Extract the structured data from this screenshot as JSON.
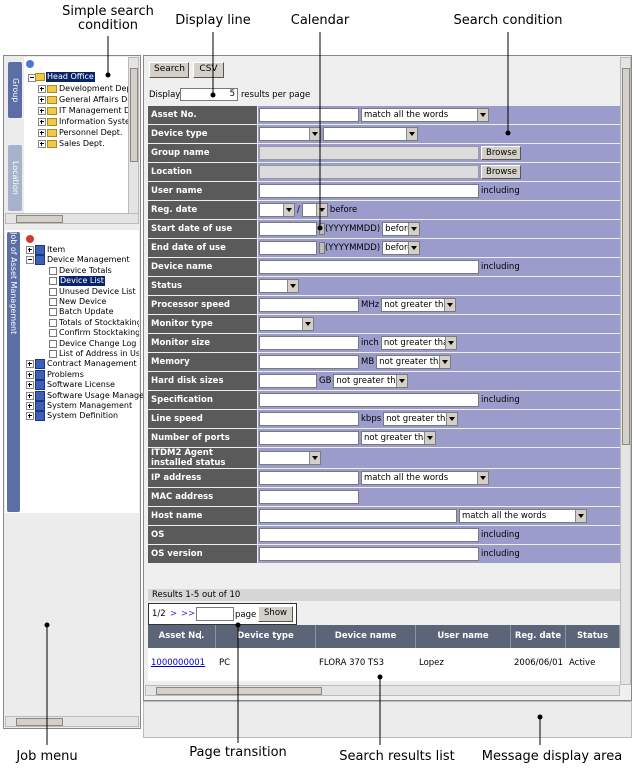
{
  "callouts": {
    "simple_search_condition": "Simple search condition",
    "display_line": "Display line",
    "calendar": "Calendar",
    "search_condition": "Search condition",
    "job_menu": "Job menu",
    "page_transition": "Page transition",
    "search_results_list": "Search results list",
    "message_display_area": "Message display area"
  },
  "tabs": {
    "group": "Group",
    "location": "Location",
    "job": "Job of Asset Management"
  },
  "group_tree": {
    "label": "Head Office",
    "selected": true,
    "children": [
      {
        "label": "Development Dept."
      },
      {
        "label": "General Affairs Dep"
      },
      {
        "label": "IT Management Dep"
      },
      {
        "label": "Information System"
      },
      {
        "label": "Personnel Dept."
      },
      {
        "label": "Sales Dept."
      }
    ]
  },
  "job_menu": [
    {
      "label": "Item"
    },
    {
      "label": "Device Management",
      "children": [
        {
          "label": "Device Totals"
        },
        {
          "label": "Device List",
          "selected": true
        },
        {
          "label": "Unused Device List"
        },
        {
          "label": "New Device"
        },
        {
          "label": "Batch Update"
        },
        {
          "label": "Totals of Stocktaking-U"
        },
        {
          "label": "Confirm Stocktaking D"
        },
        {
          "label": "Device Change Log"
        },
        {
          "label": "List of Address in Use"
        }
      ]
    },
    {
      "label": "Contract Management"
    },
    {
      "label": "Problems"
    },
    {
      "label": "Software License"
    },
    {
      "label": "Software Usage Managem"
    },
    {
      "label": "System Management"
    },
    {
      "label": "System Definition"
    }
  ],
  "toolbar": {
    "search": "Search",
    "csv": "CSV"
  },
  "display": {
    "label": "Display",
    "value": 5,
    "suffix": "results per page"
  },
  "form": {
    "rows": [
      {
        "label": "Asset No.",
        "select": "match all the words"
      },
      {
        "label": "Device type"
      },
      {
        "label": "Group name",
        "button": "Browse"
      },
      {
        "label": "Location",
        "button": "Browse"
      },
      {
        "label": "User name",
        "suffix": "including"
      },
      {
        "label": "Reg. date",
        "separator": "/",
        "suffix": "before"
      },
      {
        "label": "Start date of use",
        "date_format": "(YYYYMMDD)",
        "select": "before"
      },
      {
        "label": "End date of use",
        "date_format": "(YYYYMMDD)",
        "select": "before"
      },
      {
        "label": "Device name",
        "suffix": "including"
      },
      {
        "label": "Status"
      },
      {
        "label": "Processor speed",
        "unit": "MHz",
        "select": "not greater than"
      },
      {
        "label": "Monitor type"
      },
      {
        "label": "Monitor size",
        "unit": "inch",
        "select": "not greater than"
      },
      {
        "label": "Memory",
        "unit": "MB",
        "select": "not greater than"
      },
      {
        "label": "Hard disk sizes",
        "unit": "GB",
        "select": "not greater than"
      },
      {
        "label": "Specification",
        "suffix": "including"
      },
      {
        "label": "Line speed",
        "unit": "kbps",
        "select": "not greater than"
      },
      {
        "label": "Number of ports",
        "select": "not greater than"
      },
      {
        "label": "ITDM2 Agent installed status"
      },
      {
        "label": "IP address",
        "select": "match all the words"
      },
      {
        "label": "MAC address"
      },
      {
        "label": "Host name",
        "select": "match all the words"
      },
      {
        "label": "OS",
        "suffix": "including"
      },
      {
        "label": "OS version",
        "suffix": "including"
      }
    ]
  },
  "results": {
    "summary": "Results 1-5 out of 10",
    "pager": {
      "page": "1/2",
      "next": ">",
      "last": ">>",
      "unit": "page",
      "button": "Show"
    },
    "table": {
      "columns": [
        "Asset No.",
        "Device type",
        "Device name",
        "User name",
        "Reg. date",
        "Status"
      ],
      "rows": [
        [
          "1000000001",
          "PC",
          "FLORA 370 TS3",
          "Lopez",
          "2006/06/01",
          "Active"
        ]
      ]
    }
  }
}
